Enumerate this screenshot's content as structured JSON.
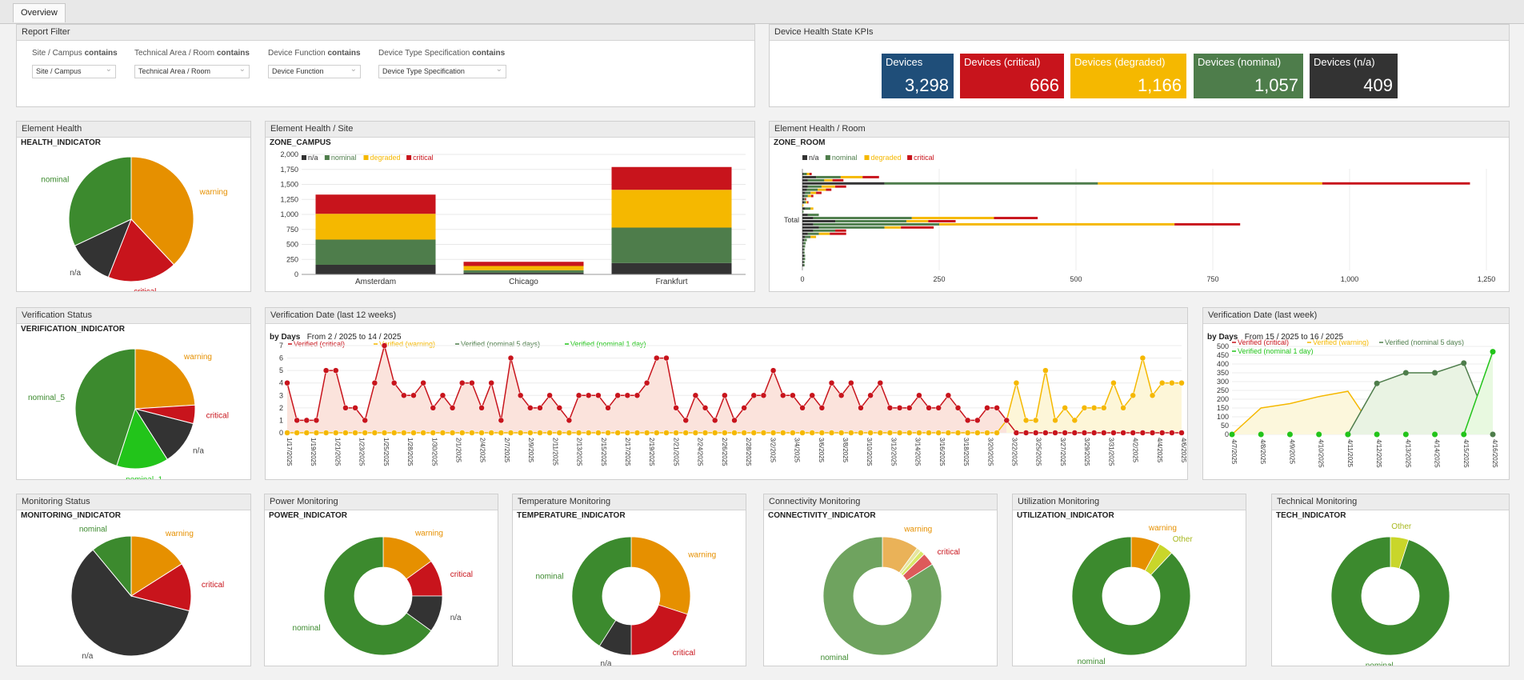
{
  "tabs": [
    {
      "label": "Overview"
    }
  ],
  "report_filter": {
    "title": "Report Filter",
    "filters": [
      {
        "label": "Site / Campus",
        "op": "contains",
        "value": "Site / Campus"
      },
      {
        "label": "Technical Area / Room",
        "op": "contains",
        "value": "Technical Area / Room"
      },
      {
        "label": "Device Function",
        "op": "contains",
        "value": "Device Function"
      },
      {
        "label": "Device Type Specification",
        "op": "contains",
        "value": "Device Type Specification"
      }
    ]
  },
  "kpis": {
    "title": "Device Health State KPIs",
    "items": [
      {
        "label": "Devices",
        "value": "3,298",
        "color": "#1f4e79"
      },
      {
        "label": "Devices (critical)",
        "value": "666",
        "color": "#c8141c"
      },
      {
        "label": "Devices (degraded)",
        "value": "1,166",
        "color": "#f5b800"
      },
      {
        "label": "Devices (nominal)",
        "value": "1,057",
        "color": "#4e7d4b"
      },
      {
        "label": "Devices (n/a)",
        "value": "409",
        "color": "#333333"
      }
    ]
  },
  "colors": {
    "na": "#333333",
    "nominal": "#4e7d4b",
    "degraded": "#f5b800",
    "critical": "#c8141c",
    "warning": "#e69000",
    "green": "#3c8a2e",
    "lime": "#22c41a",
    "pale_nominal": "#6fa35f",
    "pale_warning": "#eab258",
    "yellow_green": "#c9d62a"
  },
  "element_health": {
    "title": "Element Health",
    "indicator": "HEALTH_INDICATOR",
    "chart_data": {
      "type": "pie",
      "slices": [
        {
          "label": "warning",
          "value": 38
        },
        {
          "label": "critical",
          "value": 18
        },
        {
          "label": "n/a",
          "value": 12
        },
        {
          "label": "nominal",
          "value": 32
        }
      ]
    }
  },
  "element_health_site": {
    "title": "Element Health / Site",
    "indicator": "ZONE_CAMPUS",
    "chart_data": {
      "type": "bar",
      "stacked": true,
      "categories": [
        "Amsterdam",
        "Chicago",
        "Frankfurt"
      ],
      "series": [
        {
          "name": "n/a",
          "values": [
            160,
            30,
            190
          ]
        },
        {
          "name": "nominal",
          "values": [
            420,
            40,
            590
          ]
        },
        {
          "name": "degraded",
          "values": [
            430,
            70,
            630
          ]
        },
        {
          "name": "critical",
          "values": [
            320,
            70,
            380
          ]
        }
      ],
      "yticks": [
        "0",
        "250",
        "500",
        "750",
        "1,000",
        "1,250",
        "1,500",
        "1,750",
        "2,000"
      ],
      "ylim": [
        0,
        2000
      ]
    }
  },
  "element_health_room": {
    "title": "Element Health / Room",
    "indicator": "ZONE_ROOM",
    "chart_data": {
      "type": "bar",
      "orientation": "horizontal",
      "stacked": true,
      "category": "Total",
      "legend": [
        "n/a",
        "nominal",
        "degraded",
        "critical"
      ],
      "xticks": [
        "0",
        "250",
        "500",
        "750",
        "1,000",
        "1,250"
      ],
      "xlim": [
        0,
        1250
      ],
      "rows": [
        [
          2,
          6,
          5,
          4
        ],
        [
          25,
          45,
          40,
          30
        ],
        [
          10,
          30,
          15,
          20
        ],
        [
          150,
          390,
          410,
          270
        ],
        [
          10,
          25,
          25,
          20
        ],
        [
          8,
          20,
          15,
          10
        ],
        [
          5,
          10,
          10,
          10
        ],
        [
          4,
          6,
          6,
          4
        ],
        [
          3,
          2,
          0,
          2
        ],
        [
          3,
          3,
          3,
          2
        ],
        [
          0,
          0,
          2,
          0
        ],
        [
          5,
          10,
          5,
          0
        ],
        [
          0,
          2,
          0,
          0
        ],
        [
          10,
          20,
          0,
          0
        ],
        [
          20,
          180,
          150,
          80
        ],
        [
          60,
          130,
          40,
          50
        ],
        [
          20,
          230,
          430,
          120
        ],
        [
          30,
          120,
          30,
          60
        ],
        [
          20,
          40,
          0,
          20
        ],
        [
          10,
          20,
          20,
          30
        ],
        [
          5,
          10,
          10,
          0
        ],
        [
          3,
          5,
          0,
          0
        ],
        [
          2,
          4,
          0,
          0
        ],
        [
          2,
          3,
          0,
          0
        ],
        [
          2,
          2,
          0,
          0
        ],
        [
          2,
          2,
          0,
          0
        ],
        [
          3,
          2,
          0,
          0
        ],
        [
          2,
          3,
          0,
          0
        ],
        [
          2,
          2,
          0,
          0
        ],
        [
          2,
          2,
          0,
          0
        ]
      ]
    }
  },
  "verification_status": {
    "title": "Verification Status",
    "indicator": "VERIFICATION_INDICATOR",
    "chart_data": {
      "type": "pie",
      "slices": [
        {
          "label": "warning",
          "value": 24
        },
        {
          "label": "critical",
          "value": 5
        },
        {
          "label": "n/a",
          "value": 12
        },
        {
          "label": "nominal_1",
          "value": 14
        },
        {
          "label": "nominal_5",
          "value": 45
        }
      ]
    }
  },
  "verification_12w": {
    "title": "Verification Date (last 12 weeks)",
    "mode": "by Days",
    "range": "From 2 / 2025 to 14 / 2025",
    "chart_data": {
      "type": "line",
      "legend": [
        "Verified (critical)",
        "Verified (warning)",
        "Verified (nominal 5 days)",
        "Verified (nominal 1 day)"
      ],
      "yticks": [
        "0",
        "1",
        "2",
        "3",
        "4",
        "5",
        "6",
        "7"
      ],
      "ylim": [
        0,
        7
      ],
      "x_labels": [
        "1/17/2025",
        "1/19/2025",
        "1/21/2025",
        "1/23/2025",
        "1/25/2025",
        "1/28/2025",
        "1/30/2025",
        "2/1/2025",
        "2/4/2025",
        "2/7/2025",
        "2/9/2025",
        "2/11/2025",
        "2/13/2025",
        "2/15/2025",
        "2/17/2025",
        "2/19/2025",
        "2/21/2025",
        "2/24/2025",
        "2/26/2025",
        "2/28/2025",
        "3/2/2025",
        "3/4/2025",
        "3/6/2025",
        "3/8/2025",
        "3/10/2025",
        "3/12/2025",
        "3/14/2025",
        "3/16/2025",
        "3/18/2025",
        "3/20/2025",
        "3/22/2025",
        "3/25/2025",
        "3/27/2025",
        "3/29/2025",
        "3/31/2025",
        "4/2/2025",
        "4/4/2025",
        "4/6/2025"
      ],
      "critical": [
        4,
        1,
        1,
        1,
        5,
        5,
        2,
        2,
        1,
        4,
        7,
        4,
        3,
        3,
        4,
        2,
        3,
        2,
        4,
        4,
        2,
        4,
        1,
        6,
        3,
        2,
        2,
        3,
        2,
        1,
        3,
        3,
        3,
        2,
        3,
        3,
        3,
        4,
        6,
        6,
        2,
        1,
        3,
        2,
        1,
        3,
        1,
        2,
        3,
        3,
        5,
        3,
        3,
        2,
        3,
        2,
        4,
        3,
        4,
        2,
        3,
        4,
        2,
        2,
        2,
        3,
        2,
        2,
        3,
        2,
        1,
        1,
        2,
        2,
        1,
        0,
        0,
        0,
        0,
        0,
        0,
        0,
        0,
        0,
        0,
        0,
        0,
        0,
        0,
        0,
        0,
        0,
        0
      ],
      "warning": [
        0,
        0,
        0,
        0,
        0,
        0,
        0,
        0,
        0,
        0,
        0,
        0,
        0,
        0,
        0,
        0,
        0,
        0,
        0,
        0,
        0,
        0,
        0,
        0,
        0,
        0,
        0,
        0,
        0,
        0,
        0,
        0,
        0,
        0,
        0,
        0,
        0,
        0,
        0,
        0,
        0,
        0,
        0,
        0,
        0,
        0,
        0,
        0,
        0,
        0,
        0,
        0,
        0,
        0,
        0,
        0,
        0,
        0,
        0,
        0,
        0,
        0,
        0,
        0,
        0,
        0,
        0,
        0,
        0,
        0,
        0,
        0,
        0,
        0,
        1,
        4,
        1,
        1,
        5,
        1,
        2,
        1,
        2,
        2,
        2,
        4,
        2,
        3,
        6,
        3,
        4,
        4,
        4
      ],
      "split_index": 74
    }
  },
  "verification_1w": {
    "title": "Verification Date (last week)",
    "mode": "by Days",
    "range": "From 15 / 2025 to 16 / 2025",
    "chart_data": {
      "type": "line",
      "legend": [
        "Verified (critical)",
        "Verified (warning)",
        "Verified (nominal 5 days)",
        "Verified (nominal 1 day)"
      ],
      "yticks": [
        "0",
        "50",
        "100",
        "150",
        "200",
        "250",
        "300",
        "350",
        "400",
        "450",
        "500"
      ],
      "ylim": [
        0,
        500
      ],
      "x_labels": [
        "4/7/2025",
        "4/8/2025",
        "4/9/2025",
        "4/10/2025",
        "4/11/2025",
        "4/12/2025",
        "4/13/2025",
        "4/14/2025",
        "4/15/2025",
        "4/16/2025"
      ],
      "warning": [
        0,
        150,
        175,
        215,
        245,
        0,
        0,
        0,
        0,
        0
      ],
      "nominal5": [
        0,
        0,
        0,
        0,
        0,
        290,
        350,
        350,
        405,
        0
      ],
      "nominal1": [
        0,
        0,
        0,
        0,
        0,
        0,
        0,
        0,
        0,
        470
      ]
    }
  },
  "monitoring_status": {
    "title": "Monitoring Status",
    "indicator": "MONITORING_INDICATOR",
    "chart_data": {
      "type": "pie",
      "slices": [
        {
          "label": "warning",
          "value": 16
        },
        {
          "label": "critical",
          "value": 13
        },
        {
          "label": "n/a",
          "value": 60
        },
        {
          "label": "nominal",
          "value": 11
        }
      ]
    }
  },
  "power": {
    "title": "Power Monitoring",
    "indicator": "POWER_INDICATOR",
    "chart_data": {
      "type": "donut",
      "slices": [
        {
          "label": "warning",
          "value": 15
        },
        {
          "label": "critical",
          "value": 10
        },
        {
          "label": "n/a",
          "value": 10
        },
        {
          "label": "nominal",
          "value": 65
        }
      ]
    }
  },
  "temperature": {
    "title": "Temperature Monitoring",
    "indicator": "TEMPERATURE_INDICATOR",
    "chart_data": {
      "type": "donut",
      "slices": [
        {
          "label": "warning",
          "value": 30
        },
        {
          "label": "critical",
          "value": 20
        },
        {
          "label": "n/a",
          "value": 9
        },
        {
          "label": "nominal",
          "value": 41
        }
      ]
    }
  },
  "connectivity": {
    "title": "Connectivity Monitoring",
    "indicator": "CONNECTIVITY_INDICATOR",
    "chart_data": {
      "type": "donut",
      "slices": [
        {
          "label": "warning",
          "value": 10
        },
        {
          "label": "",
          "value": 1.2
        },
        {
          "label": "",
          "value": 1.3
        },
        {
          "label": "critical",
          "value": 3.5
        },
        {
          "label": "nominal",
          "value": 84
        }
      ]
    }
  },
  "utilization": {
    "title": "Utilization Monitoring",
    "indicator": "UTILIZATION_INDICATOR",
    "chart_data": {
      "type": "donut",
      "slices": [
        {
          "label": "warning",
          "value": 8
        },
        {
          "label": "Other",
          "value": 4
        },
        {
          "label": "nominal",
          "value": 88
        }
      ]
    }
  },
  "tech": {
    "title": "Technical Monitoring",
    "indicator": "TECH_INDICATOR",
    "chart_data": {
      "type": "donut",
      "slices": [
        {
          "label": "Other",
          "value": 5
        },
        {
          "label": "nominal",
          "value": 95
        }
      ]
    }
  }
}
